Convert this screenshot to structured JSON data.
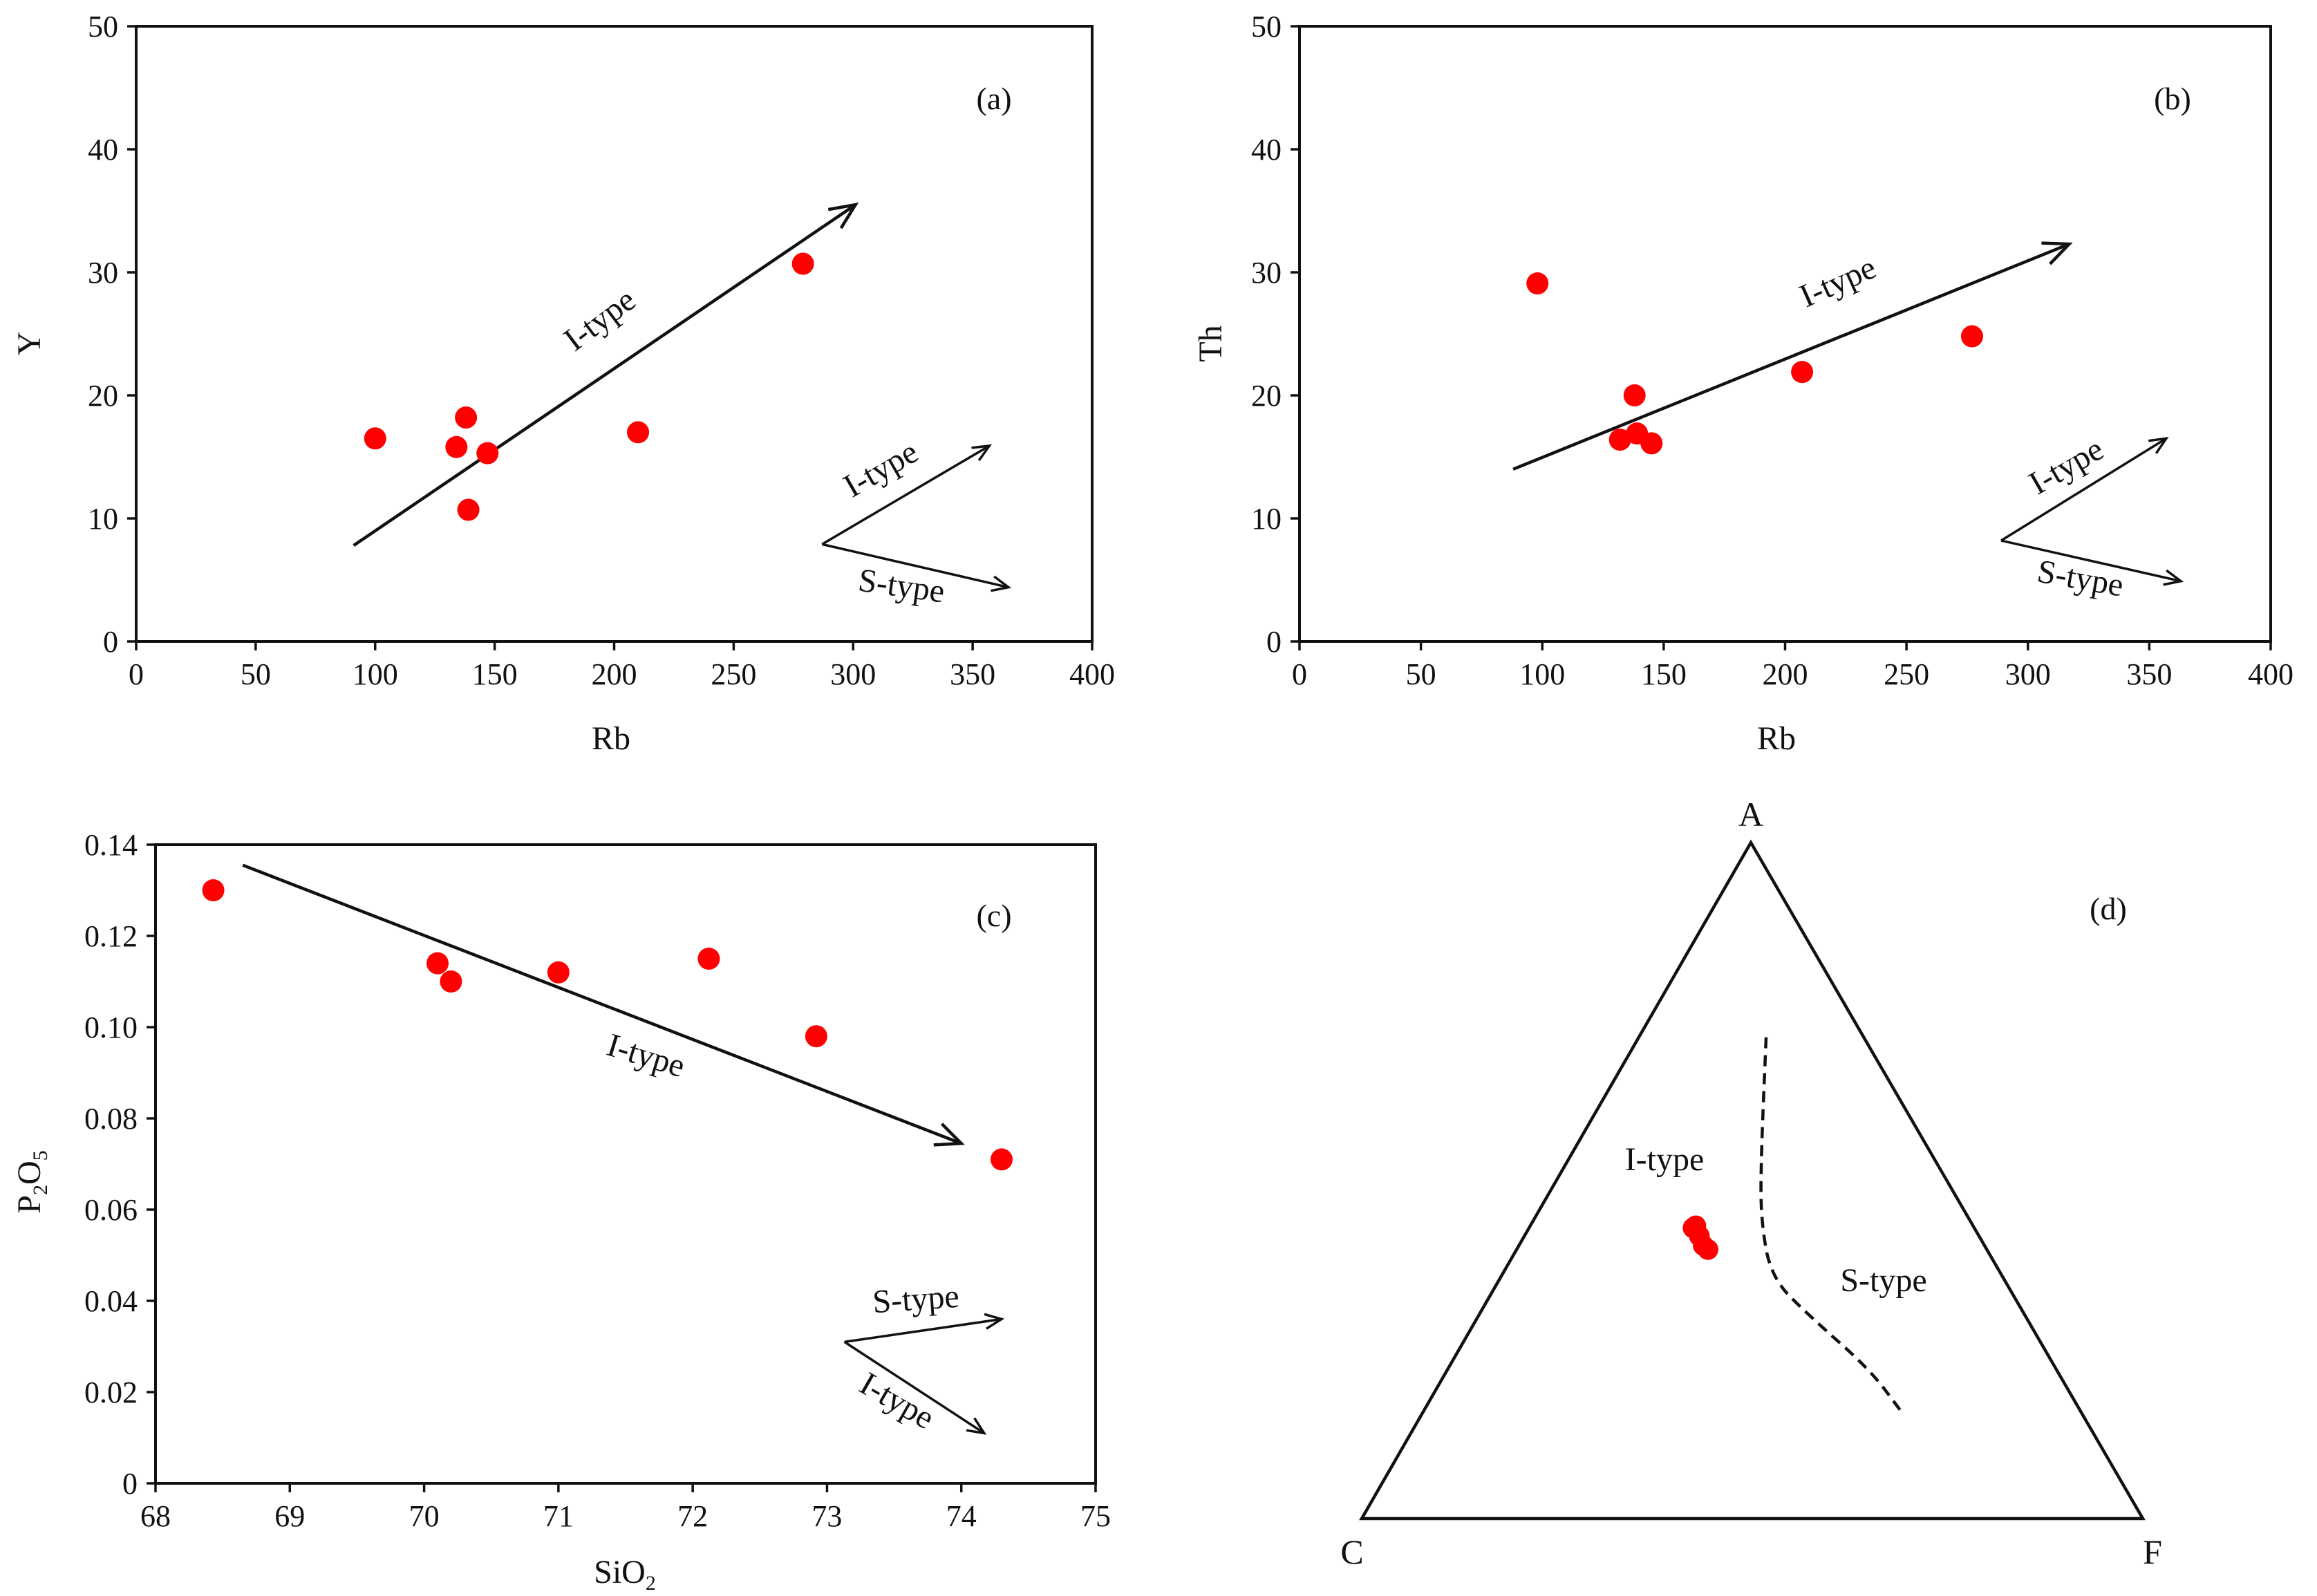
{
  "figure": {
    "colors": {
      "point": "#ff0000",
      "ink": "#111111",
      "background": "#ffffff"
    }
  },
  "chart_data": [
    {
      "id": "a",
      "type": "scatter",
      "panel_label": "(a)",
      "xlabel": "Rb",
      "ylabel": "Y",
      "xlim": [
        0,
        400
      ],
      "ylim": [
        0,
        50
      ],
      "xticks": [
        0,
        50,
        100,
        150,
        200,
        250,
        300,
        350,
        400
      ],
      "yticks": [
        0,
        10,
        20,
        30,
        40,
        50
      ],
      "points": [
        {
          "x": 100,
          "y": 16.5
        },
        {
          "x": 134,
          "y": 15.8
        },
        {
          "x": 138,
          "y": 18.2
        },
        {
          "x": 139,
          "y": 10.7
        },
        {
          "x": 147,
          "y": 15.3
        },
        {
          "x": 210,
          "y": 17.0
        },
        {
          "x": 279,
          "y": 30.7
        }
      ],
      "trend": {
        "label": "I-type",
        "from": [
          91,
          7.8
        ],
        "to": [
          301,
          35.5
        ]
      },
      "key": [
        {
          "label": "I-type",
          "from": [
            287,
            7.9
          ],
          "to": [
            357,
            15.9
          ]
        },
        {
          "label": "S-type",
          "from": [
            287,
            7.9
          ],
          "to": [
            365,
            4.4
          ]
        }
      ]
    },
    {
      "id": "b",
      "type": "scatter",
      "panel_label": "(b)",
      "xlabel": "Rb",
      "ylabel": "Th",
      "xlim": [
        0,
        400
      ],
      "ylim": [
        0,
        50
      ],
      "xticks": [
        0,
        50,
        100,
        150,
        200,
        250,
        300,
        350,
        400
      ],
      "yticks": [
        0,
        10,
        20,
        30,
        40,
        50
      ],
      "points": [
        {
          "x": 98,
          "y": 29.1
        },
        {
          "x": 132,
          "y": 16.4
        },
        {
          "x": 138,
          "y": 20.0
        },
        {
          "x": 139,
          "y": 16.9
        },
        {
          "x": 145,
          "y": 16.1
        },
        {
          "x": 207,
          "y": 21.9
        },
        {
          "x": 277,
          "y": 24.8
        }
      ],
      "trend": {
        "label": "I-type",
        "from": [
          88,
          14.0
        ],
        "to": [
          317,
          32.3
        ]
      },
      "key": [
        {
          "label": "I-type",
          "from": [
            289,
            8.2
          ],
          "to": [
            357,
            16.5
          ]
        },
        {
          "label": "S-type",
          "from": [
            289,
            8.2
          ],
          "to": [
            363,
            4.9
          ]
        }
      ]
    },
    {
      "id": "c",
      "type": "scatter",
      "panel_label": "(c)",
      "xlabel": "SiO",
      "xlabel_sub": "2",
      "ylabel": "P",
      "ylabel_sub1": "2",
      "ylabel_mid": "O",
      "ylabel_sub2": "5",
      "xlim": [
        68,
        75
      ],
      "ylim": [
        0,
        0.14
      ],
      "xticks": [
        68,
        69,
        70,
        71,
        72,
        73,
        74,
        75
      ],
      "yticks": [
        0,
        0.02,
        0.04,
        0.06,
        0.08,
        0.1,
        0.12,
        0.14
      ],
      "ytick_labels": [
        "0",
        "0.02",
        "0.04",
        "0.06",
        "0.08",
        "0.10",
        "0.12",
        "0.14"
      ],
      "points": [
        {
          "x": 68.43,
          "y": 0.13
        },
        {
          "x": 70.1,
          "y": 0.114
        },
        {
          "x": 70.2,
          "y": 0.11
        },
        {
          "x": 71.0,
          "y": 0.112
        },
        {
          "x": 72.12,
          "y": 0.115
        },
        {
          "x": 72.92,
          "y": 0.098
        },
        {
          "x": 74.3,
          "y": 0.071
        }
      ],
      "trend": {
        "label": "I-type",
        "from": [
          68.65,
          0.1355
        ],
        "to": [
          74.0,
          0.0745
        ]
      },
      "key": [
        {
          "label": "S-type",
          "from": [
            73.13,
            0.031
          ],
          "to": [
            74.3,
            0.036
          ]
        },
        {
          "label": "I-type",
          "from": [
            73.13,
            0.031
          ],
          "to": [
            74.17,
            0.011
          ]
        }
      ]
    },
    {
      "id": "d",
      "type": "scatter",
      "subtype": "ternary",
      "panel_label": "(d)",
      "vertices": {
        "top": "A",
        "left": "C",
        "right": "F"
      },
      "fields": [
        {
          "label": "I-type",
          "at": [
            0.52,
            0.56,
            -0.08
          ]
        },
        {
          "label": "S-type",
          "at": [
            0.37,
            0.22,
            0.41
          ]
        }
      ],
      "points": [
        {
          "A": 0.43,
          "C": 0.36,
          "F": 0.21
        },
        {
          "A": 0.433,
          "C": 0.355,
          "F": 0.212
        },
        {
          "A": 0.418,
          "C": 0.358,
          "F": 0.224
        },
        {
          "A": 0.404,
          "C": 0.36,
          "F": 0.236
        },
        {
          "A": 0.398,
          "C": 0.357,
          "F": 0.245
        }
      ],
      "boundary": [
        {
          "A": 0.712,
          "C": 0.125,
          "F": 0.163
        },
        {
          "A": 0.528,
          "C": 0.224,
          "F": 0.248
        },
        {
          "A": 0.44,
          "C": 0.268,
          "F": 0.292
        },
        {
          "A": 0.356,
          "C": 0.297,
          "F": 0.347
        },
        {
          "A": 0.299,
          "C": 0.276,
          "F": 0.425
        },
        {
          "A": 0.221,
          "C": 0.239,
          "F": 0.54
        },
        {
          "A": 0.16,
          "C": 0.23,
          "F": 0.61
        }
      ]
    }
  ]
}
